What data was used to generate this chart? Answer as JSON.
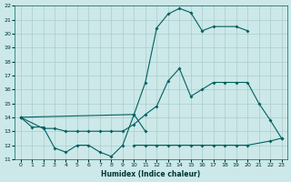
{
  "background_color": "#cce8e8",
  "grid_color": "#aacccc",
  "line_color": "#006060",
  "xlabel": "Humidex (Indice chaleur)",
  "xlim": [
    -0.5,
    23.5
  ],
  "ylim": [
    11,
    22
  ],
  "x_ticks": [
    0,
    1,
    2,
    3,
    4,
    5,
    6,
    7,
    8,
    9,
    10,
    11,
    12,
    13,
    14,
    15,
    16,
    17,
    18,
    19,
    20,
    21,
    22,
    23
  ],
  "y_ticks": [
    11,
    12,
    13,
    14,
    15,
    16,
    17,
    18,
    19,
    20,
    21,
    22
  ],
  "series1_x": [
    0,
    1,
    2,
    3,
    4,
    5,
    6,
    7,
    8,
    9,
    10,
    11
  ],
  "series1_y": [
    14.0,
    13.3,
    13.3,
    11.8,
    11.5,
    12.0,
    12.0,
    11.5,
    11.2,
    12.0,
    14.2,
    13.0
  ],
  "series2_x": [
    0,
    10,
    11,
    12,
    13,
    14,
    15,
    16,
    17,
    19,
    20
  ],
  "series2_y": [
    14.0,
    14.2,
    16.5,
    20.4,
    21.4,
    21.8,
    21.5,
    20.2,
    20.5,
    20.5,
    20.2
  ],
  "series3_x": [
    0,
    2,
    3,
    4,
    5,
    6,
    7,
    8,
    9,
    10,
    11,
    12,
    13,
    14,
    15,
    16,
    17,
    18,
    19,
    20,
    21,
    22,
    23
  ],
  "series3_y": [
    14.0,
    13.2,
    13.2,
    13.0,
    13.0,
    13.0,
    13.0,
    13.0,
    13.0,
    13.5,
    14.2,
    14.8,
    16.6,
    17.5,
    15.5,
    16.0,
    16.5,
    16.5,
    16.5,
    16.5,
    15.0,
    13.8,
    12.5
  ],
  "series4_x": [
    10,
    11,
    12,
    13,
    14,
    15,
    16,
    17,
    18,
    19,
    20,
    22,
    23
  ],
  "series4_y": [
    12.0,
    12.0,
    12.0,
    12.0,
    12.0,
    12.0,
    12.0,
    12.0,
    12.0,
    12.0,
    12.0,
    12.3,
    12.5
  ]
}
